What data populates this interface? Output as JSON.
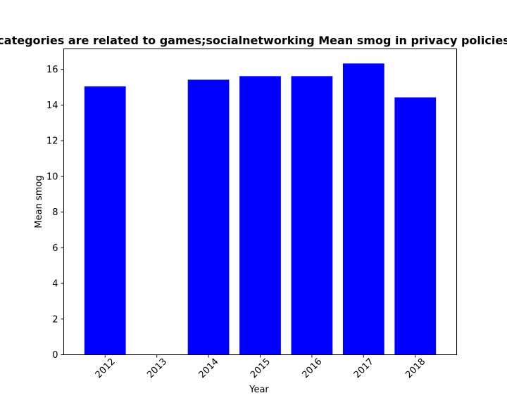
{
  "chart_data": {
    "type": "bar",
    "title": "categories are related to games;socialnetworking Mean smog in privacy policies",
    "xlabel": "Year",
    "ylabel": "Mean smog",
    "categories": [
      "2012",
      "2013",
      "2014",
      "2015",
      "2016",
      "2017",
      "2018"
    ],
    "values": [
      15.05,
      0,
      15.42,
      15.62,
      15.62,
      16.33,
      14.43
    ],
    "ylim": [
      0,
      17.15
    ],
    "yticks": [
      0,
      2,
      4,
      6,
      8,
      10,
      12,
      14,
      16
    ],
    "xtick_rotation": 45,
    "grid": false,
    "bar_color": "#0000ff"
  }
}
